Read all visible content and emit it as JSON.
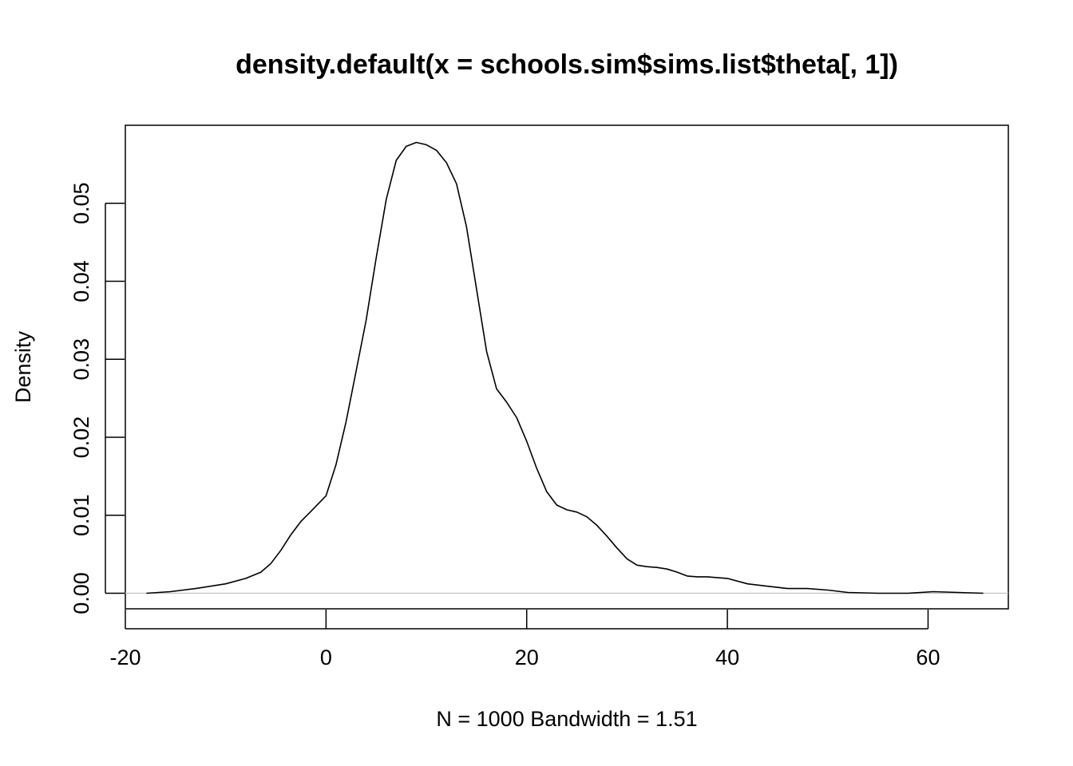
{
  "chart_data": {
    "type": "line",
    "title": "density.default(x = schools.sim$sims.list$theta[, 1])",
    "xlabel": "N = 1000   Bandwidth = 1.51",
    "ylabel": "Density",
    "xlim": [
      -20,
      68
    ],
    "ylim": [
      -0.002,
      0.06
    ],
    "x_ticks": [
      -20,
      0,
      20,
      40,
      60
    ],
    "x_tick_labels": [
      "-20",
      "0",
      "20",
      "40",
      "60"
    ],
    "y_ticks": [
      0.0,
      0.01,
      0.02,
      0.03,
      0.04,
      0.05
    ],
    "y_tick_labels": [
      "0.00",
      "0.01",
      "0.02",
      "0.03",
      "0.04",
      "0.05"
    ],
    "baseline_y": 0,
    "grid": false,
    "series": [
      {
        "x": [
          -17.9,
          -15.5,
          -13,
          -10,
          -8,
          -6.5,
          -5.5,
          -4.5,
          -3.5,
          -2.5,
          -1.5,
          0,
          1,
          2,
          3,
          4,
          5,
          6,
          7,
          8,
          9,
          10,
          11,
          12,
          13,
          14,
          15,
          16,
          17,
          18,
          19,
          20,
          21,
          22,
          23,
          24,
          25,
          26,
          27,
          28,
          29,
          30,
          31,
          32,
          33,
          34,
          35,
          36,
          37,
          38,
          39,
          40,
          42,
          44,
          46,
          48,
          50,
          52,
          55,
          58,
          60.5,
          63,
          65.5
        ],
        "y": [
          0.0,
          0.0002,
          0.0006,
          0.0012,
          0.0019,
          0.0027,
          0.0038,
          0.0055,
          0.0075,
          0.0092,
          0.0105,
          0.0125,
          0.0165,
          0.022,
          0.0285,
          0.035,
          0.043,
          0.0505,
          0.0555,
          0.0573,
          0.0578,
          0.0575,
          0.0568,
          0.0552,
          0.0525,
          0.047,
          0.039,
          0.031,
          0.0262,
          0.0245,
          0.0225,
          0.0195,
          0.016,
          0.013,
          0.0113,
          0.0107,
          0.0104,
          0.0098,
          0.0087,
          0.0073,
          0.0058,
          0.0044,
          0.0036,
          0.0034,
          0.0033,
          0.0031,
          0.0027,
          0.0022,
          0.0021,
          0.0021,
          0.002,
          0.0019,
          0.0012,
          0.0009,
          0.0006,
          0.0006,
          0.0004,
          0.0001,
          0.0,
          0.0,
          0.0002,
          0.0001,
          0.0
        ]
      }
    ]
  }
}
